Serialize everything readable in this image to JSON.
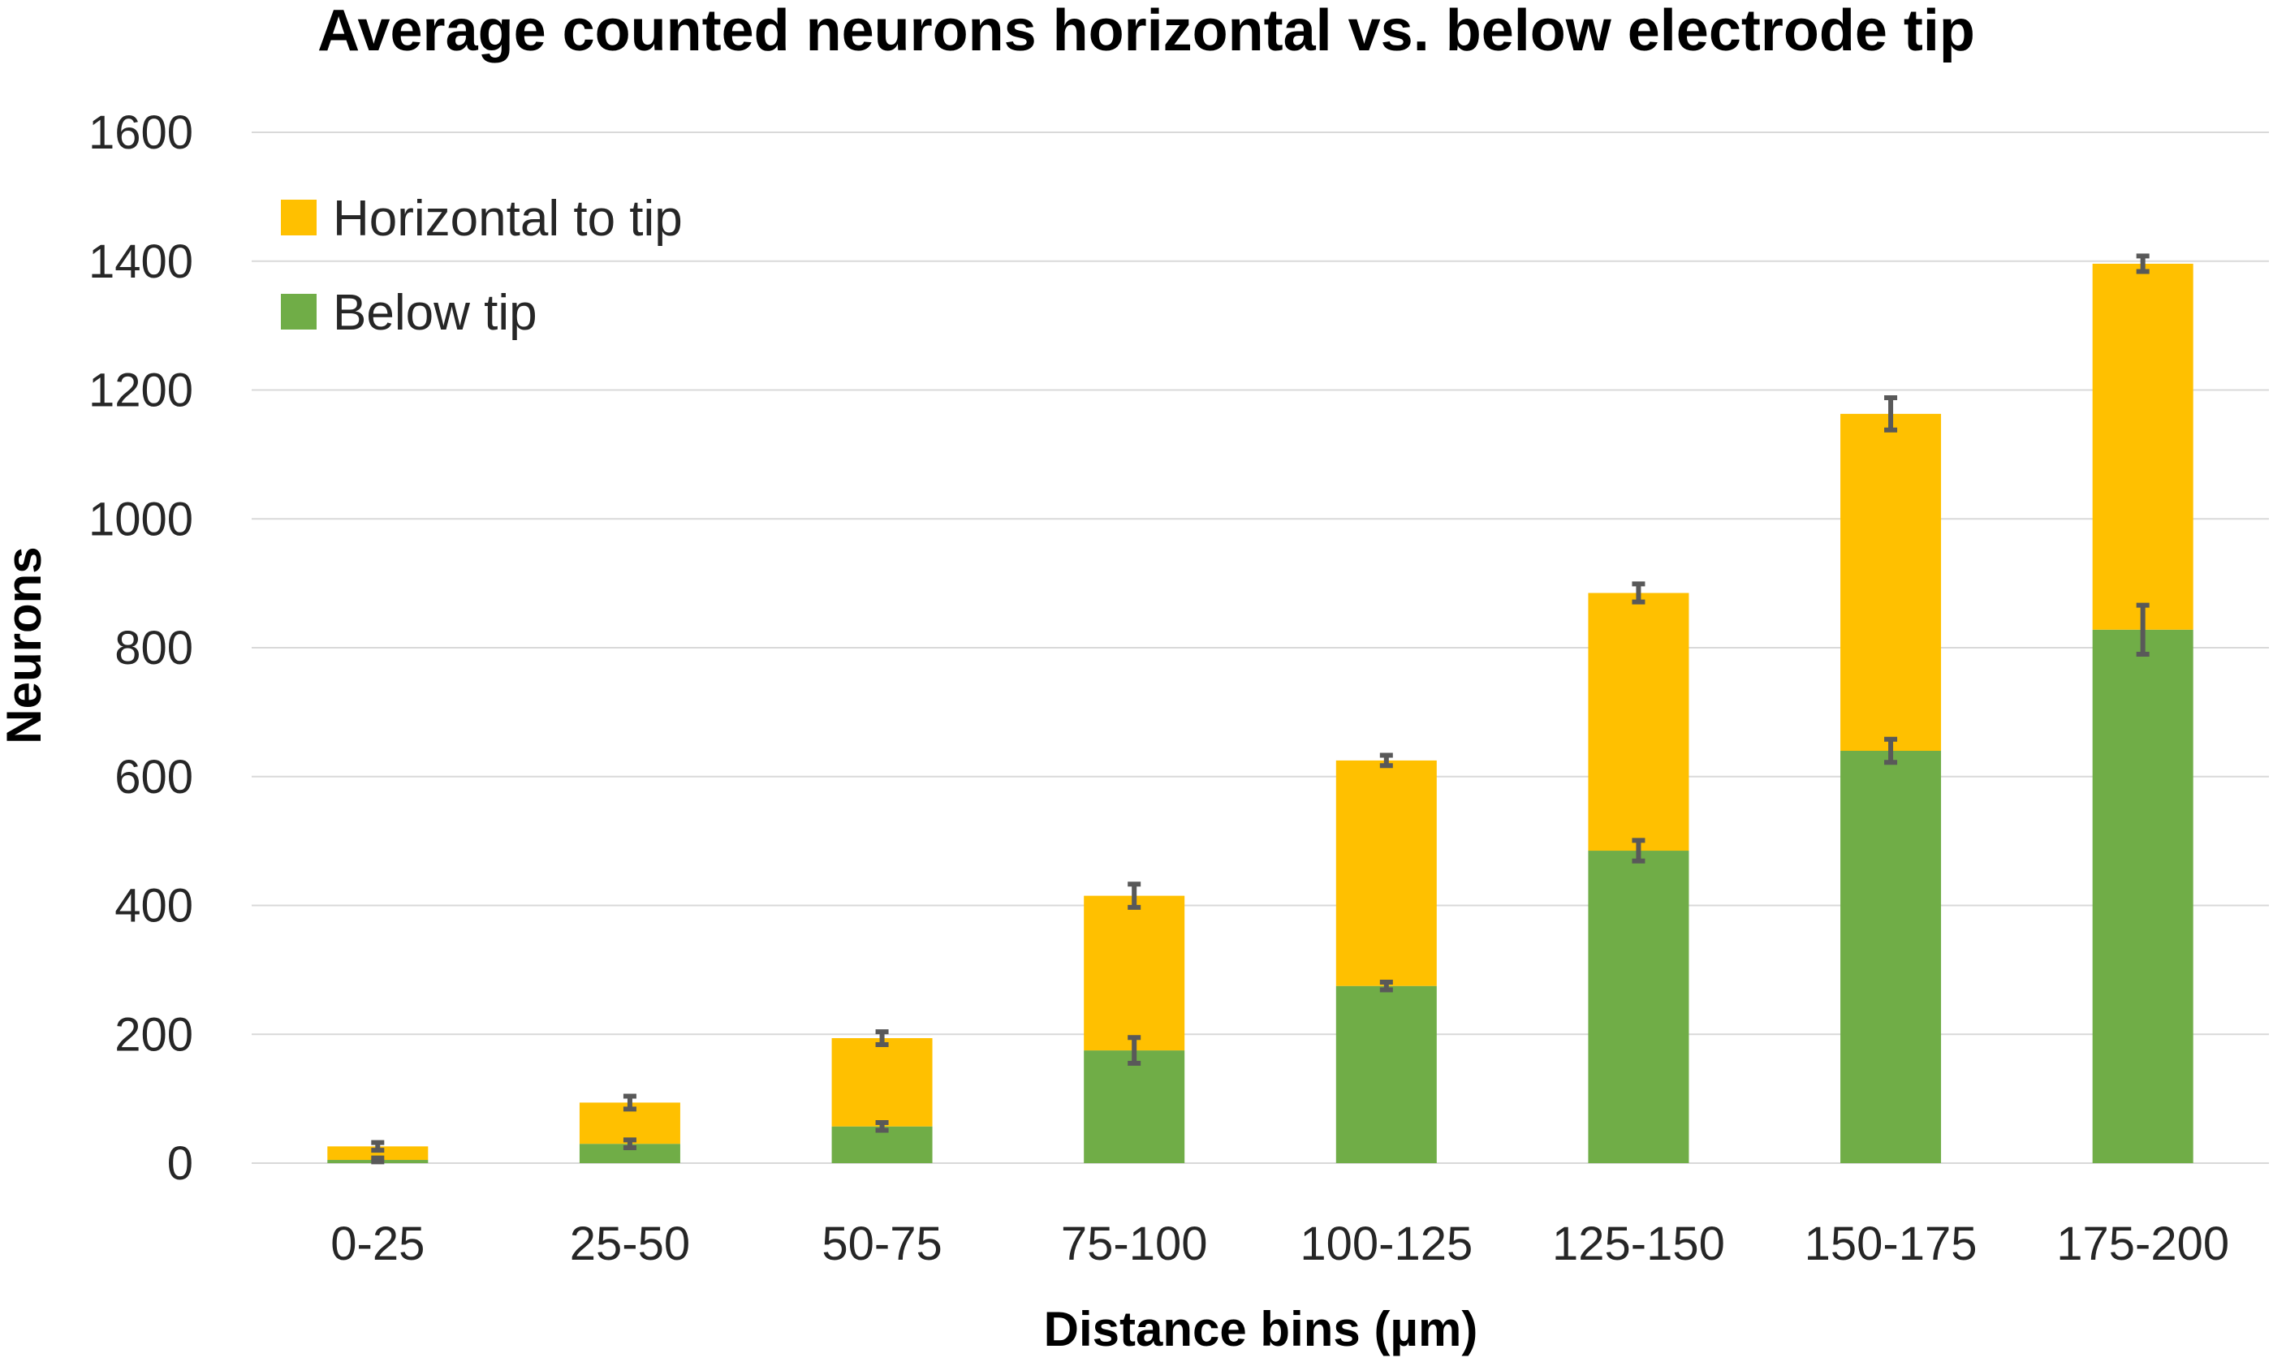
{
  "chart_data": {
    "type": "bar",
    "stacked": true,
    "title": "Average counted neurons horizontal vs. below electrode tip",
    "xlabel": "Distance bins (µm)",
    "ylabel": "Neurons",
    "ylim": [
      0,
      1600
    ],
    "yticks": [
      0,
      200,
      400,
      600,
      800,
      1000,
      1200,
      1400,
      1600
    ],
    "grid": true,
    "legend_position": "top-left",
    "categories": [
      "0-25",
      "25-50",
      "50-75",
      "75-100",
      "100-125",
      "125-150",
      "150-175",
      "175-200"
    ],
    "series": [
      {
        "name": "Below tip",
        "color": "#70AD47",
        "values": [
          5,
          30,
          57,
          175,
          275,
          485,
          640,
          828
        ],
        "errors": [
          3,
          6,
          6,
          20,
          6,
          16,
          18,
          38
        ]
      },
      {
        "name": "Horizontal to tip",
        "color": "#FFC000",
        "values": [
          21,
          64,
          137,
          240,
          350,
          400,
          523,
          568
        ],
        "errors": [
          6,
          10,
          10,
          18,
          8,
          14,
          25,
          12
        ]
      }
    ],
    "error_bar_color": "#595959"
  }
}
